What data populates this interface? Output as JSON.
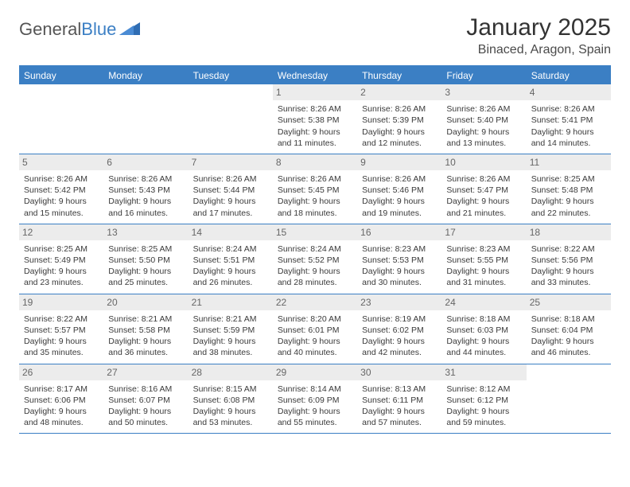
{
  "brand": {
    "word1": "General",
    "word2": "Blue"
  },
  "title": "January 2025",
  "location": "Binaced, Aragon, Spain",
  "colors": {
    "header_bg": "#3b7fc4",
    "daynum_bg": "#ececec",
    "text": "#3a3a3a",
    "page_bg": "#ffffff"
  },
  "typography": {
    "title_fontsize": 30,
    "location_fontsize": 16,
    "cell_fontsize": 10.5,
    "dayhead_fontsize": 12
  },
  "day_names": [
    "Sunday",
    "Monday",
    "Tuesday",
    "Wednesday",
    "Thursday",
    "Friday",
    "Saturday"
  ],
  "weeks": [
    [
      {
        "day": "",
        "sunrise": "",
        "sunset": "",
        "daylight": ""
      },
      {
        "day": "",
        "sunrise": "",
        "sunset": "",
        "daylight": ""
      },
      {
        "day": "",
        "sunrise": "",
        "sunset": "",
        "daylight": ""
      },
      {
        "day": "1",
        "sunrise": "Sunrise: 8:26 AM",
        "sunset": "Sunset: 5:38 PM",
        "daylight": "Daylight: 9 hours and 11 minutes."
      },
      {
        "day": "2",
        "sunrise": "Sunrise: 8:26 AM",
        "sunset": "Sunset: 5:39 PM",
        "daylight": "Daylight: 9 hours and 12 minutes."
      },
      {
        "day": "3",
        "sunrise": "Sunrise: 8:26 AM",
        "sunset": "Sunset: 5:40 PM",
        "daylight": "Daylight: 9 hours and 13 minutes."
      },
      {
        "day": "4",
        "sunrise": "Sunrise: 8:26 AM",
        "sunset": "Sunset: 5:41 PM",
        "daylight": "Daylight: 9 hours and 14 minutes."
      }
    ],
    [
      {
        "day": "5",
        "sunrise": "Sunrise: 8:26 AM",
        "sunset": "Sunset: 5:42 PM",
        "daylight": "Daylight: 9 hours and 15 minutes."
      },
      {
        "day": "6",
        "sunrise": "Sunrise: 8:26 AM",
        "sunset": "Sunset: 5:43 PM",
        "daylight": "Daylight: 9 hours and 16 minutes."
      },
      {
        "day": "7",
        "sunrise": "Sunrise: 8:26 AM",
        "sunset": "Sunset: 5:44 PM",
        "daylight": "Daylight: 9 hours and 17 minutes."
      },
      {
        "day": "8",
        "sunrise": "Sunrise: 8:26 AM",
        "sunset": "Sunset: 5:45 PM",
        "daylight": "Daylight: 9 hours and 18 minutes."
      },
      {
        "day": "9",
        "sunrise": "Sunrise: 8:26 AM",
        "sunset": "Sunset: 5:46 PM",
        "daylight": "Daylight: 9 hours and 19 minutes."
      },
      {
        "day": "10",
        "sunrise": "Sunrise: 8:26 AM",
        "sunset": "Sunset: 5:47 PM",
        "daylight": "Daylight: 9 hours and 21 minutes."
      },
      {
        "day": "11",
        "sunrise": "Sunrise: 8:25 AM",
        "sunset": "Sunset: 5:48 PM",
        "daylight": "Daylight: 9 hours and 22 minutes."
      }
    ],
    [
      {
        "day": "12",
        "sunrise": "Sunrise: 8:25 AM",
        "sunset": "Sunset: 5:49 PM",
        "daylight": "Daylight: 9 hours and 23 minutes."
      },
      {
        "day": "13",
        "sunrise": "Sunrise: 8:25 AM",
        "sunset": "Sunset: 5:50 PM",
        "daylight": "Daylight: 9 hours and 25 minutes."
      },
      {
        "day": "14",
        "sunrise": "Sunrise: 8:24 AM",
        "sunset": "Sunset: 5:51 PM",
        "daylight": "Daylight: 9 hours and 26 minutes."
      },
      {
        "day": "15",
        "sunrise": "Sunrise: 8:24 AM",
        "sunset": "Sunset: 5:52 PM",
        "daylight": "Daylight: 9 hours and 28 minutes."
      },
      {
        "day": "16",
        "sunrise": "Sunrise: 8:23 AM",
        "sunset": "Sunset: 5:53 PM",
        "daylight": "Daylight: 9 hours and 30 minutes."
      },
      {
        "day": "17",
        "sunrise": "Sunrise: 8:23 AM",
        "sunset": "Sunset: 5:55 PM",
        "daylight": "Daylight: 9 hours and 31 minutes."
      },
      {
        "day": "18",
        "sunrise": "Sunrise: 8:22 AM",
        "sunset": "Sunset: 5:56 PM",
        "daylight": "Daylight: 9 hours and 33 minutes."
      }
    ],
    [
      {
        "day": "19",
        "sunrise": "Sunrise: 8:22 AM",
        "sunset": "Sunset: 5:57 PM",
        "daylight": "Daylight: 9 hours and 35 minutes."
      },
      {
        "day": "20",
        "sunrise": "Sunrise: 8:21 AM",
        "sunset": "Sunset: 5:58 PM",
        "daylight": "Daylight: 9 hours and 36 minutes."
      },
      {
        "day": "21",
        "sunrise": "Sunrise: 8:21 AM",
        "sunset": "Sunset: 5:59 PM",
        "daylight": "Daylight: 9 hours and 38 minutes."
      },
      {
        "day": "22",
        "sunrise": "Sunrise: 8:20 AM",
        "sunset": "Sunset: 6:01 PM",
        "daylight": "Daylight: 9 hours and 40 minutes."
      },
      {
        "day": "23",
        "sunrise": "Sunrise: 8:19 AM",
        "sunset": "Sunset: 6:02 PM",
        "daylight": "Daylight: 9 hours and 42 minutes."
      },
      {
        "day": "24",
        "sunrise": "Sunrise: 8:18 AM",
        "sunset": "Sunset: 6:03 PM",
        "daylight": "Daylight: 9 hours and 44 minutes."
      },
      {
        "day": "25",
        "sunrise": "Sunrise: 8:18 AM",
        "sunset": "Sunset: 6:04 PM",
        "daylight": "Daylight: 9 hours and 46 minutes."
      }
    ],
    [
      {
        "day": "26",
        "sunrise": "Sunrise: 8:17 AM",
        "sunset": "Sunset: 6:06 PM",
        "daylight": "Daylight: 9 hours and 48 minutes."
      },
      {
        "day": "27",
        "sunrise": "Sunrise: 8:16 AM",
        "sunset": "Sunset: 6:07 PM",
        "daylight": "Daylight: 9 hours and 50 minutes."
      },
      {
        "day": "28",
        "sunrise": "Sunrise: 8:15 AM",
        "sunset": "Sunset: 6:08 PM",
        "daylight": "Daylight: 9 hours and 53 minutes."
      },
      {
        "day": "29",
        "sunrise": "Sunrise: 8:14 AM",
        "sunset": "Sunset: 6:09 PM",
        "daylight": "Daylight: 9 hours and 55 minutes."
      },
      {
        "day": "30",
        "sunrise": "Sunrise: 8:13 AM",
        "sunset": "Sunset: 6:11 PM",
        "daylight": "Daylight: 9 hours and 57 minutes."
      },
      {
        "day": "31",
        "sunrise": "Sunrise: 8:12 AM",
        "sunset": "Sunset: 6:12 PM",
        "daylight": "Daylight: 9 hours and 59 minutes."
      },
      {
        "day": "",
        "sunrise": "",
        "sunset": "",
        "daylight": ""
      }
    ]
  ]
}
